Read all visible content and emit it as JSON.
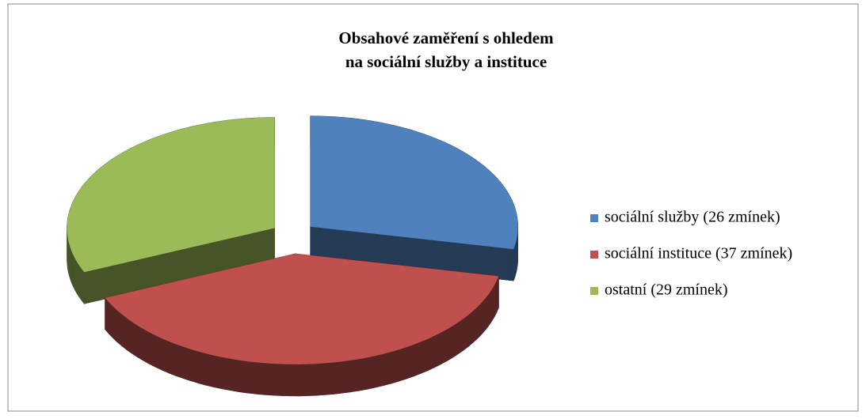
{
  "chart_data": {
    "type": "pie",
    "title": [
      "Obsahové zaměření s ohledem",
      "na sociální služby a instituce"
    ],
    "categories": [
      "sociální služby (26 zmínek)",
      "sociální instituce (37 zmínek)",
      "ostatní (29 zmínek)"
    ],
    "values": [
      26,
      37,
      29
    ],
    "colors": [
      "#4f81bd",
      "#c0504d",
      "#9bbb59"
    ],
    "legend": "right"
  }
}
